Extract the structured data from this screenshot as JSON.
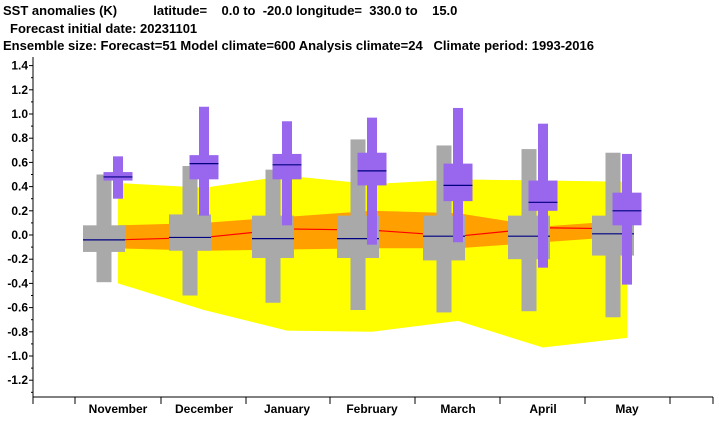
{
  "header": {
    "line1": "SST anomalies (K)          latitude=    0.0 to  -20.0 longitude=  330.0 to    15.0",
    "line2": "Forecast initial date: 20231101",
    "line3": "Ensemble size: Forecast=51 Model climate=600 Analysis climate=24   Climate period: 1993-2016"
  },
  "colors": {
    "climate_outer": "#ffff00",
    "climate_inner": "#ffa000",
    "climate_median": "#ff0000",
    "model_box": "#a9a9a9",
    "forecast_box": "#9966ee",
    "median_line": "#000080"
  },
  "chart_data": {
    "type": "box",
    "categories": [
      "November",
      "December",
      "January",
      "February",
      "March",
      "April",
      "May"
    ],
    "ylim": [
      -1.3,
      1.45
    ],
    "yticks": [
      "1.4",
      "1.2",
      "1.0",
      "0.8",
      "0.6",
      "0.4",
      "0.2",
      "0.0",
      "-0.2",
      "-0.4",
      "-0.6",
      "-0.8",
      "-1.0",
      "-1.2"
    ],
    "grid": false,
    "climate_band": {
      "outer_upper": [
        0.43,
        0.39,
        0.49,
        0.42,
        0.46,
        0.45,
        0.44
      ],
      "outer_lower": [
        -0.4,
        -0.62,
        -0.79,
        -0.8,
        -0.71,
        -0.93,
        -0.85
      ],
      "inner_upper": [
        0.08,
        0.1,
        0.15,
        0.2,
        0.18,
        0.07,
        0.12
      ],
      "inner_lower": [
        -0.11,
        -0.13,
        -0.12,
        -0.11,
        -0.11,
        -0.06,
        -0.01
      ],
      "median": [
        -0.04,
        -0.02,
        0.05,
        0.04,
        -0.01,
        0.06,
        0.05
      ]
    },
    "model_climate": [
      {
        "min": -0.39,
        "p10": -0.14,
        "p25": -0.14,
        "median": -0.04,
        "p75": 0.08,
        "p90": 0.3,
        "max": 0.5
      },
      {
        "min": -0.5,
        "p10": -0.13,
        "p25": -0.13,
        "median": -0.02,
        "p75": 0.17,
        "p90": 0.17,
        "max": 0.57
      },
      {
        "min": -0.56,
        "p10": -0.19,
        "p25": -0.19,
        "median": -0.03,
        "p75": 0.16,
        "p90": 0.16,
        "max": 0.54
      },
      {
        "min": -0.62,
        "p10": -0.19,
        "p25": -0.19,
        "median": -0.03,
        "p75": 0.16,
        "p90": 0.16,
        "max": 0.79
      },
      {
        "min": -0.64,
        "p10": -0.21,
        "p25": -0.21,
        "median": -0.01,
        "p75": 0.16,
        "p90": 0.16,
        "max": 0.74
      },
      {
        "min": -0.63,
        "p10": -0.2,
        "p25": -0.2,
        "median": -0.01,
        "p75": 0.16,
        "p90": 0.16,
        "max": 0.71
      },
      {
        "min": -0.68,
        "p10": -0.17,
        "p25": -0.17,
        "median": 0.01,
        "p75": 0.16,
        "p90": 0.16,
        "max": 0.68
      }
    ],
    "forecast": [
      {
        "min": 0.3,
        "p10": 0.45,
        "p25": 0.45,
        "median": 0.48,
        "p75": 0.52,
        "p90": 0.52,
        "max": 0.65
      },
      {
        "min": 0.16,
        "p10": 0.46,
        "p25": 0.46,
        "median": 0.59,
        "p75": 0.66,
        "p90": 0.66,
        "max": 1.06
      },
      {
        "min": 0.08,
        "p10": 0.46,
        "p25": 0.46,
        "median": 0.58,
        "p75": 0.67,
        "p90": 0.67,
        "max": 0.94
      },
      {
        "min": -0.08,
        "p10": 0.41,
        "p25": 0.41,
        "median": 0.53,
        "p75": 0.68,
        "p90": 0.68,
        "max": 0.97
      },
      {
        "min": -0.06,
        "p10": 0.28,
        "p25": 0.28,
        "median": 0.41,
        "p75": 0.59,
        "p90": 0.59,
        "max": 1.05
      },
      {
        "min": -0.27,
        "p10": 0.2,
        "p25": 0.2,
        "median": 0.27,
        "p75": 0.45,
        "p90": 0.45,
        "max": 0.92
      },
      {
        "min": -0.41,
        "p10": 0.08,
        "p25": 0.08,
        "median": 0.2,
        "p75": 0.35,
        "p90": 0.35,
        "max": 0.67
      }
    ]
  }
}
